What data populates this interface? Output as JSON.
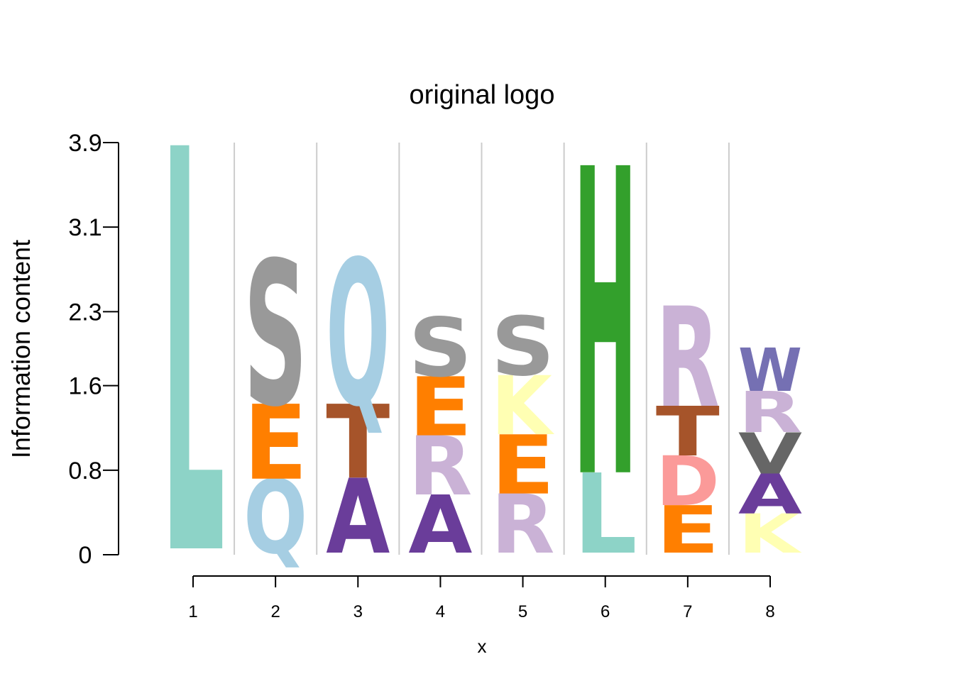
{
  "chart_data": {
    "type": "sequence-logo",
    "title": "original logo",
    "xlabel": "x",
    "ylabel": "Information content",
    "yticks": [
      "0",
      "0.8",
      "1.6",
      "2.3",
      "3.1",
      "3.9"
    ],
    "ytick_values": [
      0,
      0.8,
      1.6,
      2.3,
      3.1,
      3.9
    ],
    "ylim": [
      0,
      3.9
    ],
    "xticks": [
      "1",
      "2",
      "3",
      "4",
      "5",
      "6",
      "7",
      "8"
    ],
    "positions": [
      {
        "x": 1,
        "stack": [
          {
            "letter": "L",
            "from": 0.06,
            "to": 3.88,
            "color": "#8dd3c7"
          }
        ]
      },
      {
        "x": 2,
        "stack": [
          {
            "letter": "Q",
            "from": 0.02,
            "to": 0.72,
            "color": "#a6cee3"
          },
          {
            "letter": "E",
            "from": 0.72,
            "to": 1.43,
            "color": "#ff7f00"
          },
          {
            "letter": "S",
            "from": 1.43,
            "to": 2.8,
            "color": "#999999"
          }
        ]
      },
      {
        "x": 3,
        "stack": [
          {
            "letter": "A",
            "from": 0.02,
            "to": 0.73,
            "color": "#6a3d9a"
          },
          {
            "letter": "T",
            "from": 0.73,
            "to": 1.43,
            "color": "#a6542a"
          },
          {
            "letter": "Q",
            "from": 1.43,
            "to": 2.81,
            "color": "#a6cee3"
          }
        ]
      },
      {
        "x": 4,
        "stack": [
          {
            "letter": "A",
            "from": 0.02,
            "to": 0.57,
            "color": "#6a3d9a"
          },
          {
            "letter": "R",
            "from": 0.57,
            "to": 1.13,
            "color": "#cab2d6"
          },
          {
            "letter": "E",
            "from": 1.13,
            "to": 1.69,
            "color": "#ff7f00"
          },
          {
            "letter": "S",
            "from": 1.69,
            "to": 2.25,
            "color": "#999999"
          }
        ]
      },
      {
        "x": 5,
        "stack": [
          {
            "letter": "R",
            "from": 0.02,
            "to": 0.58,
            "color": "#cab2d6"
          },
          {
            "letter": "E",
            "from": 0.58,
            "to": 1.14,
            "color": "#ff7f00"
          },
          {
            "letter": "K",
            "from": 1.14,
            "to": 1.7,
            "color": "#ffffb3"
          },
          {
            "letter": "S",
            "from": 1.7,
            "to": 2.26,
            "color": "#999999"
          }
        ]
      },
      {
        "x": 6,
        "stack": [
          {
            "letter": "L",
            "from": 0.02,
            "to": 0.78,
            "color": "#8dd3c7"
          },
          {
            "letter": "H",
            "from": 0.78,
            "to": 3.69,
            "color": "#33a02c"
          }
        ]
      },
      {
        "x": 7,
        "stack": [
          {
            "letter": "E",
            "from": 0.02,
            "to": 0.47,
            "color": "#ff7f00"
          },
          {
            "letter": "D",
            "from": 0.47,
            "to": 0.94,
            "color": "#fb9a99"
          },
          {
            "letter": "T",
            "from": 0.94,
            "to": 1.41,
            "color": "#a6542a"
          },
          {
            "letter": "R",
            "from": 1.41,
            "to": 2.36,
            "color": "#cab2d6"
          }
        ]
      },
      {
        "x": 8,
        "stack": [
          {
            "letter": "K",
            "from": 0.02,
            "to": 0.39,
            "color": "#ffffb3"
          },
          {
            "letter": "A",
            "from": 0.39,
            "to": 0.77,
            "color": "#6a3d9a"
          },
          {
            "letter": "V",
            "from": 0.77,
            "to": 1.16,
            "color": "#666666"
          },
          {
            "letter": "R",
            "from": 1.16,
            "to": 1.55,
            "color": "#cab2d6"
          },
          {
            "letter": "W",
            "from": 1.55,
            "to": 1.96,
            "color": "#7570b3"
          }
        ]
      }
    ],
    "grid": true,
    "grid_color": "#cccccc"
  }
}
